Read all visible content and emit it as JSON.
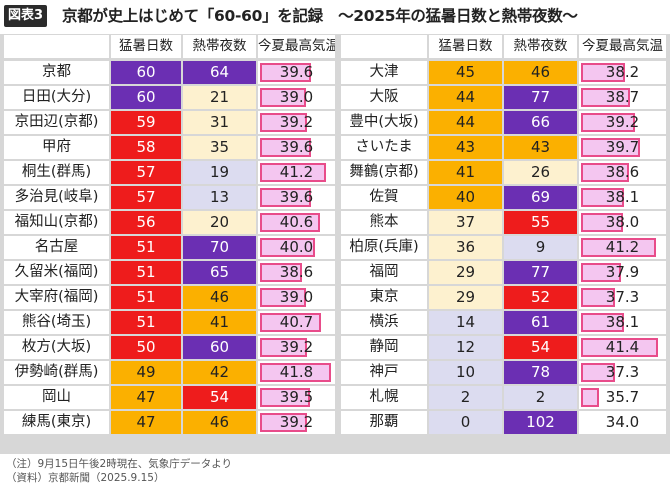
{
  "header": {
    "badge": "図表3",
    "title": "京都が史上はじめて「60-60」を記録　～2025年の猛暑日数と熱帯夜数～"
  },
  "columns": {
    "hot_days": "猛暑日数",
    "tropical_nights": "熱帯夜数",
    "max_temp": "今夏最高気温"
  },
  "colors": {
    "red": "#ee1c1c",
    "purple": "#6b2fb3",
    "orange": "#fbb000",
    "cream": "#fdf1cf",
    "lavender": "#dcdcf0",
    "bar_fill": "#f4c6f0",
    "bar_border": "#e84c8a"
  },
  "footer": {
    "note": "（注）9月15日午後2時現在、気象庁データより",
    "source": "（資料）京都新聞（2025.9.15）"
  },
  "chart_data": {
    "type": "table",
    "title": "京都が史上はじめて「60-60」を記録　～2025年の猛暑日数と熱帯夜数～",
    "columns": [
      "",
      "猛暑日数",
      "熱帯夜数",
      "今夏最高気温"
    ],
    "temp_scale": [
      34,
      42
    ],
    "left": [
      {
        "name": "京都",
        "hot": "60",
        "hot_fill": "purple",
        "night": "64",
        "night_fill": "purple",
        "temp": "39.6",
        "temp_val": 39.6
      },
      {
        "name": "日田(大分)",
        "hot": "60",
        "hot_fill": "purple",
        "night": "21",
        "night_fill": "cream",
        "temp": "39.0",
        "temp_val": 39.0
      },
      {
        "name": "京田辺(京都)",
        "hot": "59",
        "hot_fill": "red",
        "night": "31",
        "night_fill": "cream",
        "temp": "39.2",
        "temp_val": 39.2
      },
      {
        "name": "甲府",
        "hot": "58",
        "hot_fill": "red",
        "night": "35",
        "night_fill": "cream",
        "temp": "39.6",
        "temp_val": 39.6
      },
      {
        "name": "桐生(群馬)",
        "hot": "57",
        "hot_fill": "red",
        "night": "19",
        "night_fill": "lavender",
        "temp": "41.2",
        "temp_val": 41.2
      },
      {
        "name": "多治見(岐阜)",
        "hot": "57",
        "hot_fill": "red",
        "night": "13",
        "night_fill": "lavender",
        "temp": "39.6",
        "temp_val": 39.6
      },
      {
        "name": "福知山(京都)",
        "hot": "56",
        "hot_fill": "red",
        "night": "20",
        "night_fill": "cream",
        "temp": "40.6",
        "temp_val": 40.6
      },
      {
        "name": "名古屋",
        "hot": "51",
        "hot_fill": "red",
        "night": "70",
        "night_fill": "purple",
        "temp": "40.0",
        "temp_val": 40.0
      },
      {
        "name": "久留米(福岡)",
        "hot": "51",
        "hot_fill": "red",
        "night": "65",
        "night_fill": "purple",
        "temp": "38.6",
        "temp_val": 38.6
      },
      {
        "name": "大宰府(福岡)",
        "hot": "51",
        "hot_fill": "red",
        "night": "46",
        "night_fill": "orange",
        "temp": "39.0",
        "temp_val": 39.0
      },
      {
        "name": "熊谷(埼玉)",
        "hot": "51",
        "hot_fill": "red",
        "night": "41",
        "night_fill": "orange",
        "temp": "40.7",
        "temp_val": 40.7
      },
      {
        "name": "枚方(大坂)",
        "hot": "50",
        "hot_fill": "red",
        "night": "60",
        "night_fill": "purple",
        "temp": "39.2",
        "temp_val": 39.2
      },
      {
        "name": "伊勢崎(群馬)",
        "hot": "49",
        "hot_fill": "orange",
        "night": "42",
        "night_fill": "orange",
        "temp": "41.8",
        "temp_val": 41.8
      },
      {
        "name": "岡山",
        "hot": "47",
        "hot_fill": "orange",
        "night": "54",
        "night_fill": "red",
        "temp": "39.5",
        "temp_val": 39.5
      },
      {
        "name": "練馬(東京)",
        "hot": "47",
        "hot_fill": "orange",
        "night": "46",
        "night_fill": "orange",
        "temp": "39.2",
        "temp_val": 39.2
      }
    ],
    "right": [
      {
        "name": "大津",
        "hot": "45",
        "hot_fill": "orange",
        "night": "46",
        "night_fill": "orange",
        "temp": "38.2",
        "temp_val": 38.2
      },
      {
        "name": "大阪",
        "hot": "44",
        "hot_fill": "orange",
        "night": "77",
        "night_fill": "purple",
        "temp": "38.7",
        "temp_val": 38.7
      },
      {
        "name": "豊中(大坂)",
        "hot": "44",
        "hot_fill": "orange",
        "night": "66",
        "night_fill": "purple",
        "temp": "39.2",
        "temp_val": 39.2
      },
      {
        "name": "さいたま",
        "hot": "43",
        "hot_fill": "orange",
        "night": "43",
        "night_fill": "orange",
        "temp": "39.7",
        "temp_val": 39.7
      },
      {
        "name": "舞鶴(京都)",
        "hot": "41",
        "hot_fill": "orange",
        "night": "26",
        "night_fill": "cream",
        "temp": "38.6",
        "temp_val": 38.6
      },
      {
        "name": "佐賀",
        "hot": "40",
        "hot_fill": "orange",
        "night": "69",
        "night_fill": "purple",
        "temp": "38.1",
        "temp_val": 38.1
      },
      {
        "name": "熊本",
        "hot": "37",
        "hot_fill": "cream",
        "night": "55",
        "night_fill": "red",
        "temp": "38.0",
        "temp_val": 38.0
      },
      {
        "name": "柏原(兵庫)",
        "hot": "36",
        "hot_fill": "cream",
        "night": "9",
        "night_fill": "lavender",
        "temp": "41.2",
        "temp_val": 41.2
      },
      {
        "name": "福岡",
        "hot": "29",
        "hot_fill": "cream",
        "night": "77",
        "night_fill": "purple",
        "temp": "37.9",
        "temp_val": 37.9
      },
      {
        "name": "東京",
        "hot": "29",
        "hot_fill": "cream",
        "night": "52",
        "night_fill": "red",
        "temp": "37.3",
        "temp_val": 37.3
      },
      {
        "name": "横浜",
        "hot": "14",
        "hot_fill": "lavender",
        "night": "61",
        "night_fill": "purple",
        "temp": "38.1",
        "temp_val": 38.1
      },
      {
        "name": "静岡",
        "hot": "12",
        "hot_fill": "lavender",
        "night": "54",
        "night_fill": "red",
        "temp": "41.4",
        "temp_val": 41.4
      },
      {
        "name": "神戸",
        "hot": "10",
        "hot_fill": "lavender",
        "night": "78",
        "night_fill": "purple",
        "temp": "37.3",
        "temp_val": 37.3
      },
      {
        "name": "札幌",
        "hot": "2",
        "hot_fill": "lavender",
        "night": "2",
        "night_fill": "lavender",
        "temp": "35.7",
        "temp_val": 35.7
      },
      {
        "name": "那覇",
        "hot": "0",
        "hot_fill": "lavender",
        "night": "102",
        "night_fill": "purple",
        "temp": "34.0",
        "temp_val": 34.0
      }
    ]
  }
}
